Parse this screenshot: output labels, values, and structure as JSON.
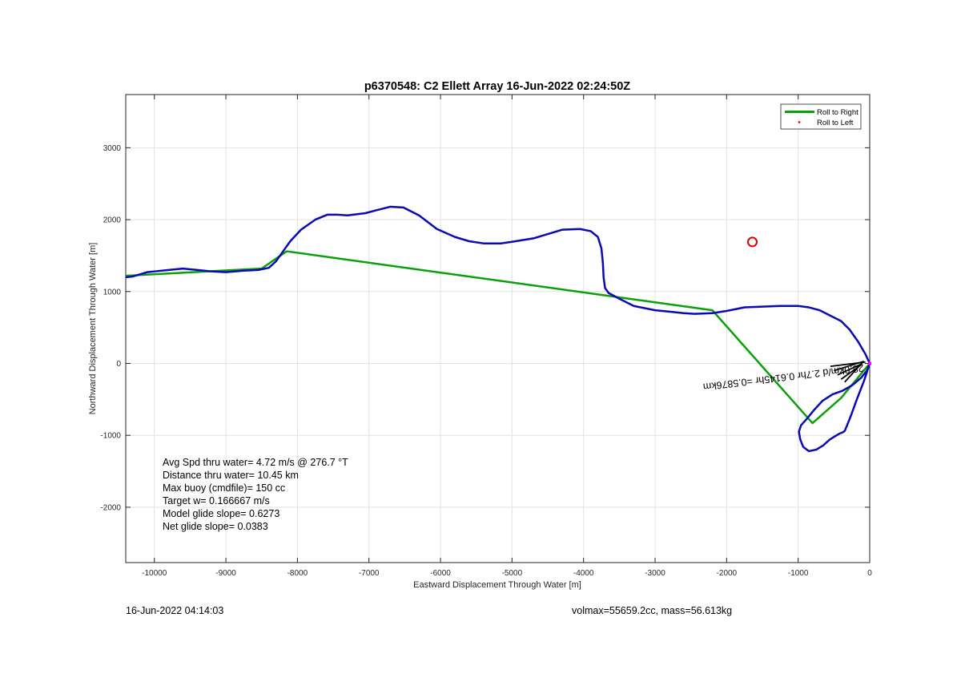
{
  "footer": {
    "left_timestamp": "16-Jun-2022 04:14:03",
    "right_info": "volmax=55659.2cc, mass=56.613kg"
  },
  "chart_data": {
    "type": "line",
    "title": "p6370548: C2 Ellett Array 16-Jun-2022 02:24:50Z",
    "xlabel": "Eastward Displacement Through Water [m]",
    "ylabel": "Northward Displacement Through Water [m]",
    "xlim": [
      -10400,
      0
    ],
    "ylim": [
      -2770,
      3740
    ],
    "grid": true,
    "x_ticks": [
      -10000,
      -9000,
      -8000,
      -7000,
      -6000,
      -5000,
      -4000,
      -3000,
      -2000,
      -1000,
      0
    ],
    "y_ticks": [
      -2000,
      -1000,
      0,
      1000,
      2000,
      3000
    ],
    "legend": {
      "placement": "top-right",
      "entries": [
        {
          "label": "Roll to Right",
          "color": "#0aa00a",
          "marker": "line"
        },
        {
          "label": "Roll to Left",
          "color": "#ff0000",
          "marker": "dot"
        }
      ]
    },
    "series": [
      {
        "color": "#0a0ab4",
        "x": [
          0,
          -75,
          -180,
          -260,
          -320,
          -350,
          -380,
          -420,
          -480,
          -560,
          -650,
          -750,
          -850,
          -930,
          -970,
          -990,
          -960,
          -870,
          -780,
          -660,
          -520,
          -380,
          -240,
          -120,
          -40,
          0,
          -60,
          -160,
          -280,
          -400,
          -500,
          -600,
          -700,
          -850,
          -1000,
          -1250,
          -1500,
          -1750,
          -2000,
          -2200,
          -2450,
          -2600,
          -2800,
          -3000,
          -3300,
          -3500,
          -3650,
          -3700,
          -3720,
          -3730,
          -3750,
          -3800,
          -3900,
          -4050,
          -4300,
          -4500,
          -4700,
          -4950,
          -5150,
          -5400,
          -5600,
          -5800,
          -6050,
          -6300,
          -6520,
          -6700,
          -6900,
          -7050,
          -7300,
          -7450,
          -7580,
          -7750,
          -7950,
          -8100,
          -8200,
          -8300,
          -8400,
          -8550,
          -8750,
          -9000,
          -9200,
          -9400,
          -9600,
          -9800,
          -10000,
          -10100,
          -10200,
          -10300,
          -10400
        ],
        "y": [
          0,
          -230,
          -500,
          -720,
          -870,
          -940,
          -960,
          -975,
          -1010,
          -1060,
          -1140,
          -1200,
          -1220,
          -1160,
          -1060,
          -950,
          -860,
          -760,
          -650,
          -520,
          -430,
          -380,
          -300,
          -200,
          -100,
          0,
          130,
          300,
          470,
          590,
          640,
          690,
          740,
          780,
          800,
          800,
          790,
          780,
          730,
          700,
          690,
          700,
          720,
          740,
          800,
          900,
          980,
          1050,
          1200,
          1400,
          1600,
          1760,
          1840,
          1870,
          1860,
          1800,
          1740,
          1700,
          1670,
          1670,
          1700,
          1760,
          1870,
          2060,
          2170,
          2180,
          2130,
          2090,
          2060,
          2070,
          2070,
          2000,
          1860,
          1700,
          1560,
          1420,
          1330,
          1300,
          1290,
          1270,
          1280,
          1300,
          1320,
          1300,
          1280,
          1270,
          1240,
          1210,
          1200
        ]
      },
      {
        "name": "Roll to Right",
        "color": "#0aa00a",
        "x": [
          0,
          -400,
          -800,
          -2200,
          -8150,
          -8500,
          -10400
        ],
        "y": [
          0,
          -480,
          -830,
          740,
          1560,
          1320,
          1220
        ]
      },
      {
        "color": "#000000",
        "x": [
          -60,
          -550,
          -80,
          -500,
          -100,
          -450,
          -120,
          -400,
          -150,
          -350
        ],
        "y": [
          20,
          -40,
          30,
          -100,
          0,
          -160,
          -20,
          -220,
          -40,
          -260
        ]
      }
    ],
    "points": [
      {
        "marker": "circle",
        "color": "#dd0000",
        "x": -1640,
        "y": 1690
      },
      {
        "marker": "square",
        "color": "#ff00ff",
        "x": 0,
        "y": 0
      }
    ],
    "annotations": [
      {
        "text": "Avg Spd thru water=  4.72 m/s @ 276.7 °T"
      },
      {
        "text": "Distance thru water= 10.45 km"
      },
      {
        "text": "Max buoy (cmdfile)= 150 cc"
      },
      {
        "text": "Target w= 0.166667 m/s"
      },
      {
        "text": "Model glide slope= 0.6273"
      },
      {
        "text": "Net glide slope= 0.0383"
      }
    ],
    "rotated_annotation": "28.0km/d 2.7hr 0.6145hr =0.5876km"
  }
}
